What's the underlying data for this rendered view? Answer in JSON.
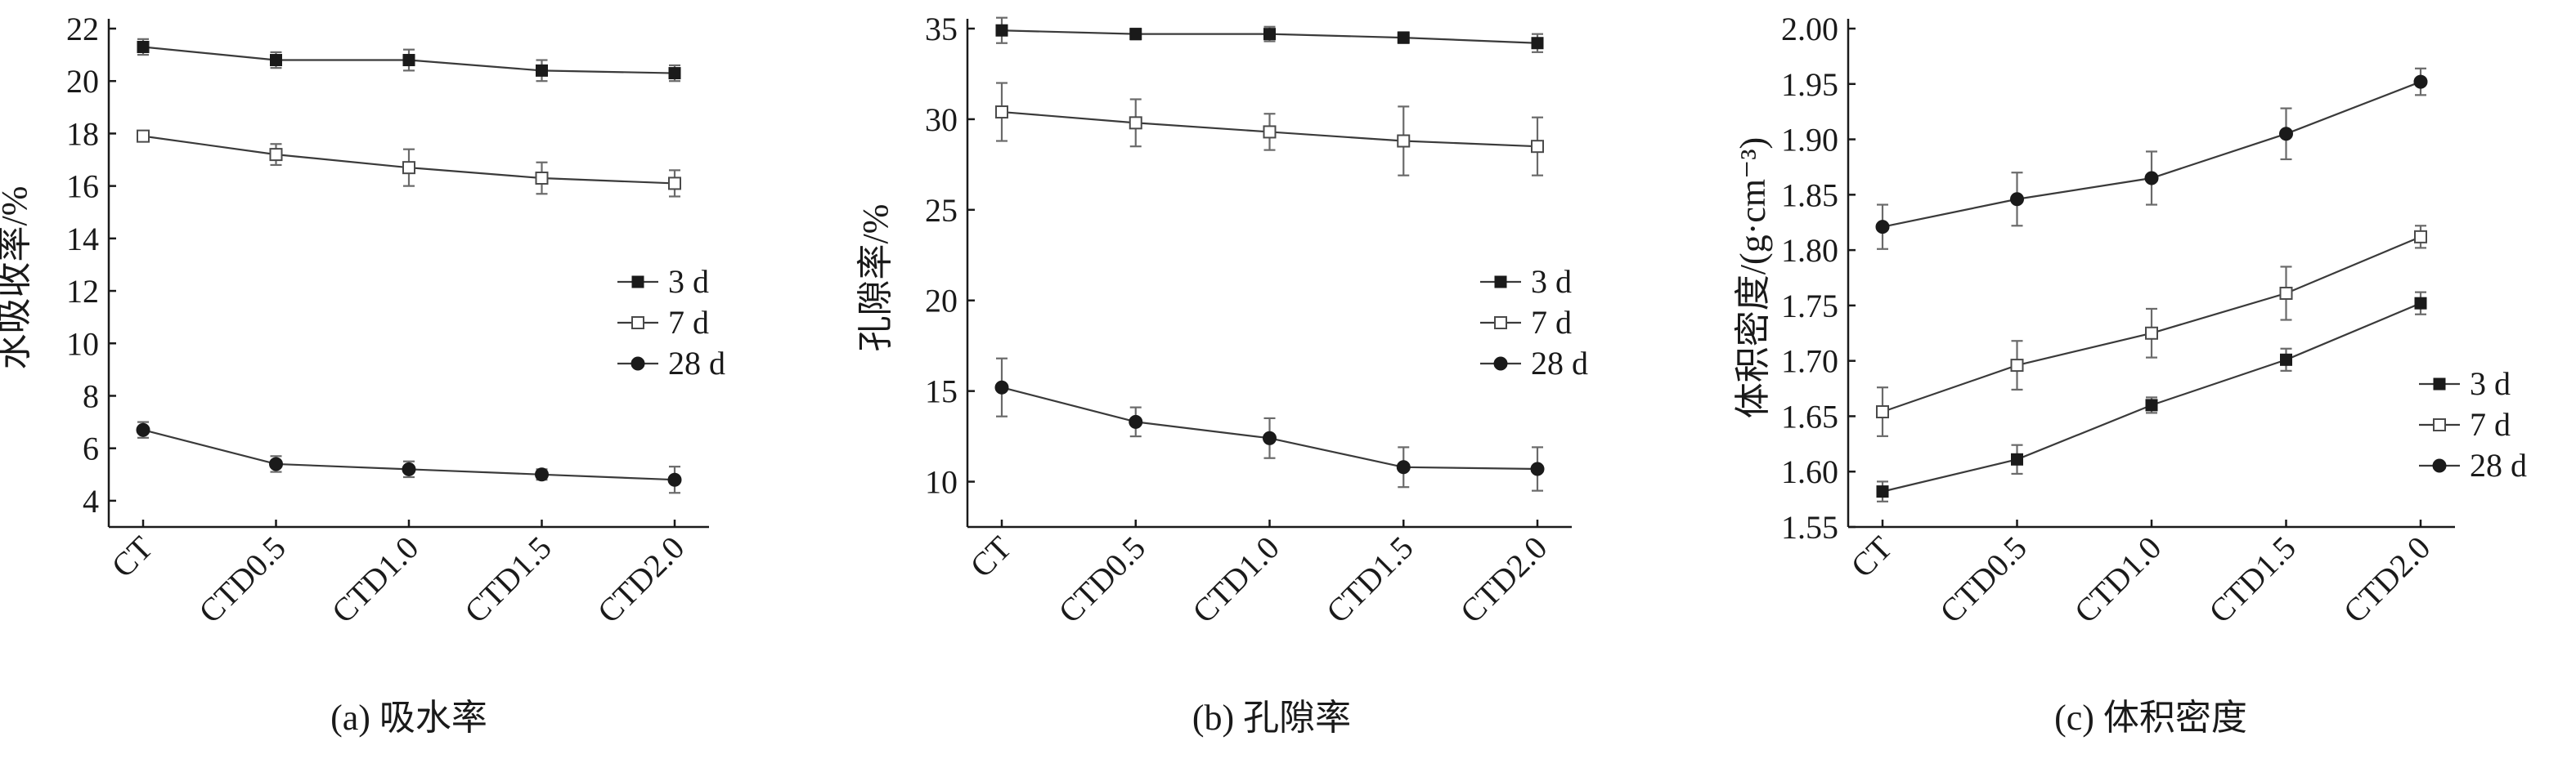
{
  "chart_data": [
    {
      "type": "line",
      "caption": "(a) 吸水率",
      "ylabel": "水吸收率/%",
      "ylim": [
        3,
        22
      ],
      "yticks": [
        4,
        6,
        8,
        10,
        12,
        14,
        16,
        18,
        20,
        22
      ],
      "categories": [
        "CT",
        "CTD0.5",
        "CTD1.0",
        "CTD1.5",
        "CTD2.0"
      ],
      "legend_position": "right-middle",
      "series": [
        {
          "name": "3 d",
          "marker": "filled-square",
          "values": [
            21.3,
            20.8,
            20.8,
            20.4,
            20.3
          ],
          "errors": [
            0.3,
            0.3,
            0.4,
            0.4,
            0.3
          ]
        },
        {
          "name": "7 d",
          "marker": "open-square",
          "values": [
            17.9,
            17.2,
            16.7,
            16.3,
            16.1
          ],
          "errors": [
            0.2,
            0.4,
            0.7,
            0.6,
            0.5
          ]
        },
        {
          "name": "28 d",
          "marker": "filled-circle",
          "values": [
            6.7,
            5.4,
            5.2,
            5.0,
            4.8
          ],
          "errors": [
            0.3,
            0.3,
            0.3,
            0.2,
            0.5
          ]
        }
      ]
    },
    {
      "type": "line",
      "caption": "(b) 孔隙率",
      "ylabel": "孔隙率/%",
      "ylim": [
        7.5,
        35
      ],
      "yticks": [
        10,
        15,
        20,
        25,
        30,
        35
      ],
      "categories": [
        "CT",
        "CTD0.5",
        "CTD1.0",
        "CTD1.5",
        "CTD2.0"
      ],
      "legend_position": "right-middle",
      "series": [
        {
          "name": "3 d",
          "marker": "filled-square",
          "values": [
            34.9,
            34.7,
            34.7,
            34.5,
            34.2
          ],
          "errors": [
            0.7,
            0.3,
            0.4,
            0.3,
            0.5
          ]
        },
        {
          "name": "7 d",
          "marker": "open-square",
          "values": [
            30.4,
            29.8,
            29.3,
            28.8,
            28.5
          ],
          "errors": [
            1.6,
            1.3,
            1.0,
            1.9,
            1.6
          ]
        },
        {
          "name": "28 d",
          "marker": "filled-circle",
          "values": [
            15.2,
            13.3,
            12.4,
            10.8,
            10.7
          ],
          "errors": [
            1.6,
            0.8,
            1.1,
            1.1,
            1.2
          ]
        }
      ]
    },
    {
      "type": "line",
      "caption": "(c) 体积密度",
      "ylabel": "体积密度/(g·cm⁻³)",
      "ylim": [
        1.55,
        2.0
      ],
      "yticks": [
        1.55,
        1.6,
        1.65,
        1.7,
        1.75,
        1.8,
        1.85,
        1.9,
        1.95,
        2.0
      ],
      "tick_decimals": 2,
      "categories": [
        "CT",
        "CTD0.5",
        "CTD1.0",
        "CTD1.5",
        "CTD2.0"
      ],
      "legend_position": "bottom-right",
      "series": [
        {
          "name": "3 d",
          "marker": "filled-square",
          "values": [
            1.582,
            1.611,
            1.66,
            1.701,
            1.752
          ],
          "errors": [
            0.009,
            0.013,
            0.007,
            0.01,
            0.01
          ]
        },
        {
          "name": "7 d",
          "marker": "open-square",
          "values": [
            1.654,
            1.696,
            1.725,
            1.761,
            1.812
          ],
          "errors": [
            0.022,
            0.022,
            0.022,
            0.024,
            0.01
          ]
        },
        {
          "name": "28 d",
          "marker": "filled-circle",
          "values": [
            1.821,
            1.846,
            1.865,
            1.905,
            1.952
          ],
          "errors": [
            0.02,
            0.024,
            0.024,
            0.023,
            0.012
          ]
        }
      ]
    }
  ]
}
